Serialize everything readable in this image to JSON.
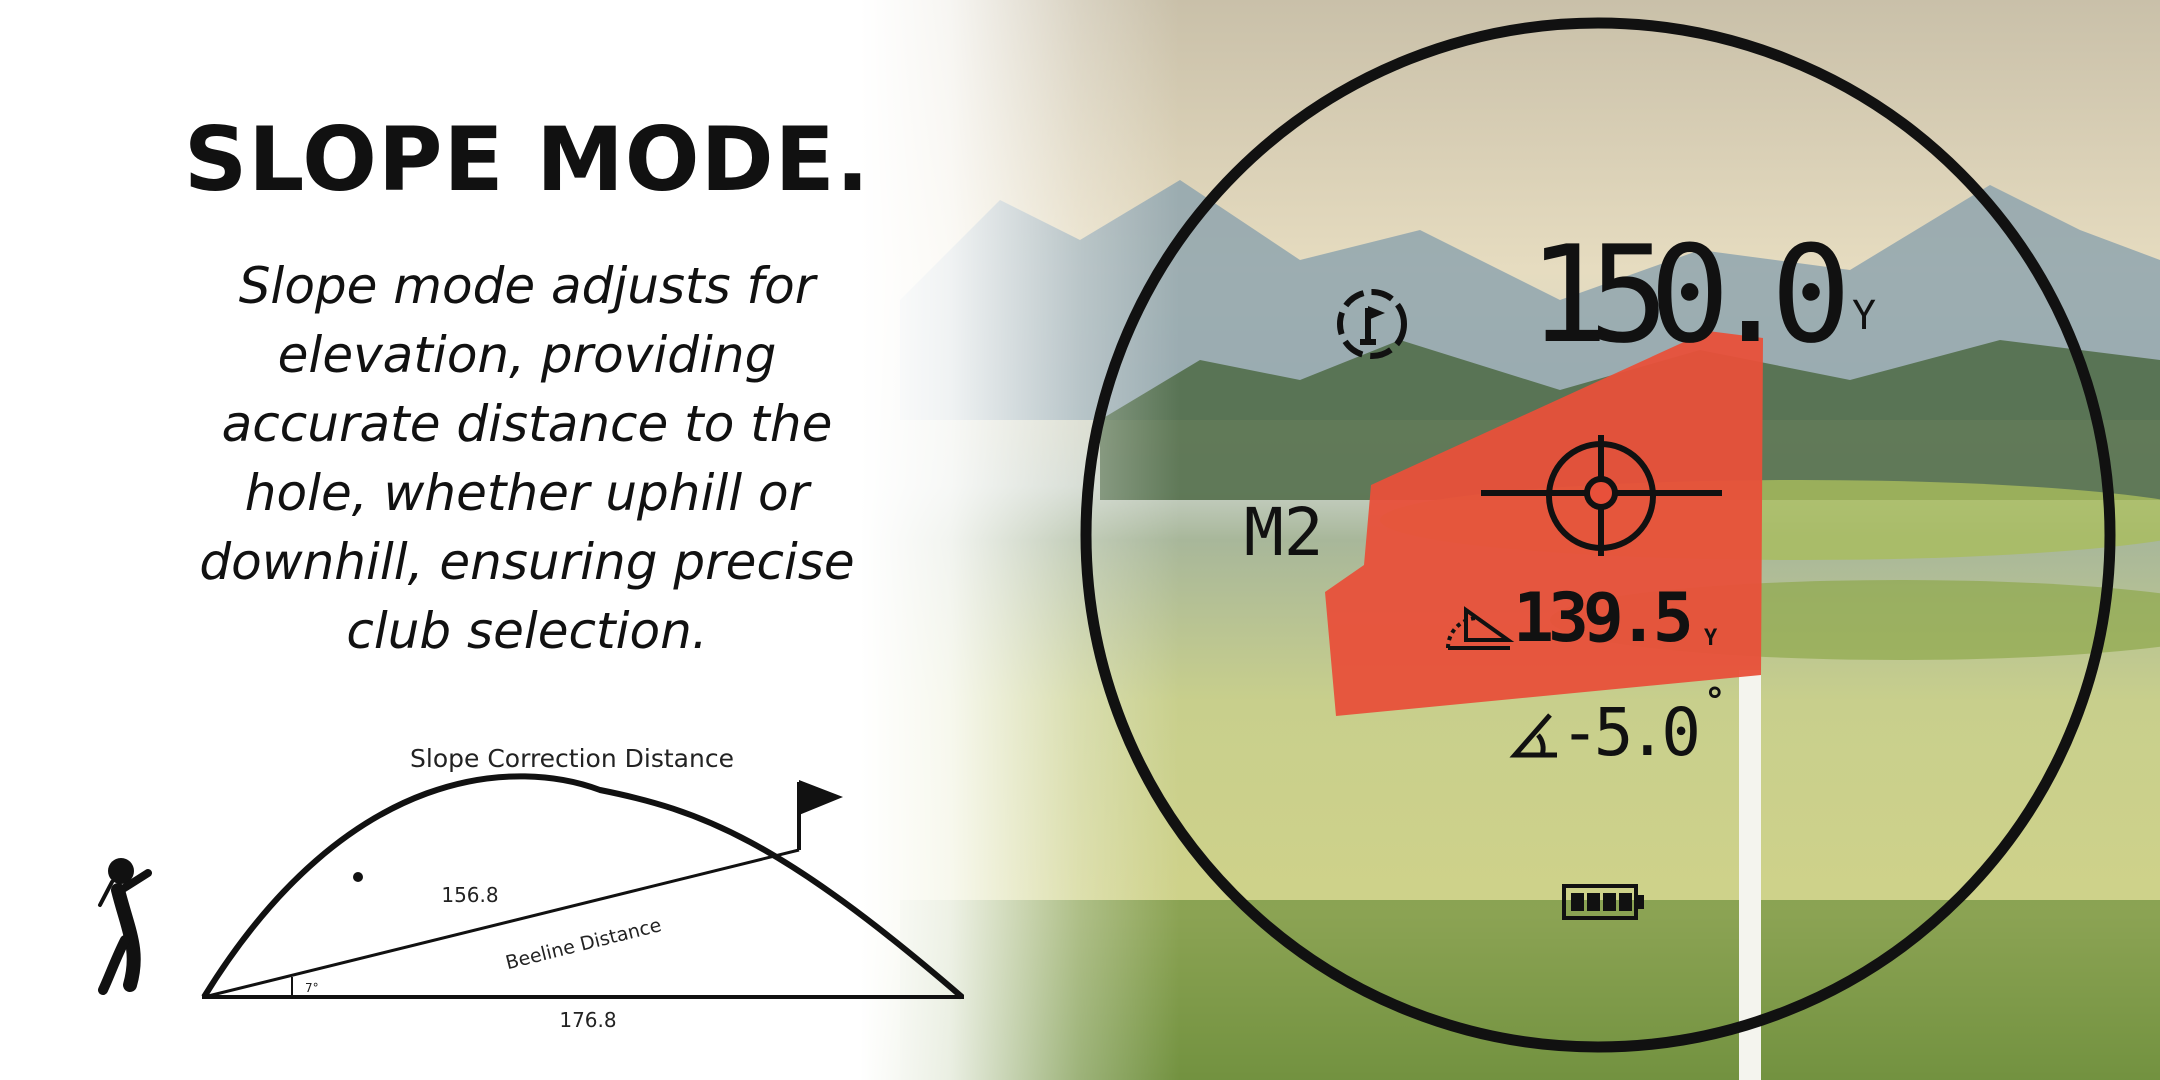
{
  "heading": "SLOPE MODE.",
  "description": "Slope mode adjusts for elevation, providing accurate distance to the hole, whether uphill or downhill, ensuring precise club selection.",
  "diagram": {
    "title": "Slope Correction Distance",
    "beeline_value": "156.8",
    "beeline_label": "Beeline Distance",
    "angle": "7°",
    "horizontal_value": "176.8"
  },
  "rangefinder": {
    "distance": "150.0",
    "distance_unit": "Y",
    "mode": "M2",
    "slope_distance": "139.5",
    "slope_unit": "Y",
    "angle": "-5.0",
    "angle_unit": "°",
    "battery_level": 1.0,
    "icons": [
      "flag-lock-icon",
      "crosshair-icon",
      "slope-distance-icon",
      "angle-icon",
      "battery-icon"
    ]
  },
  "colors": {
    "flag": "#e8503a",
    "lcd": "#111111"
  }
}
